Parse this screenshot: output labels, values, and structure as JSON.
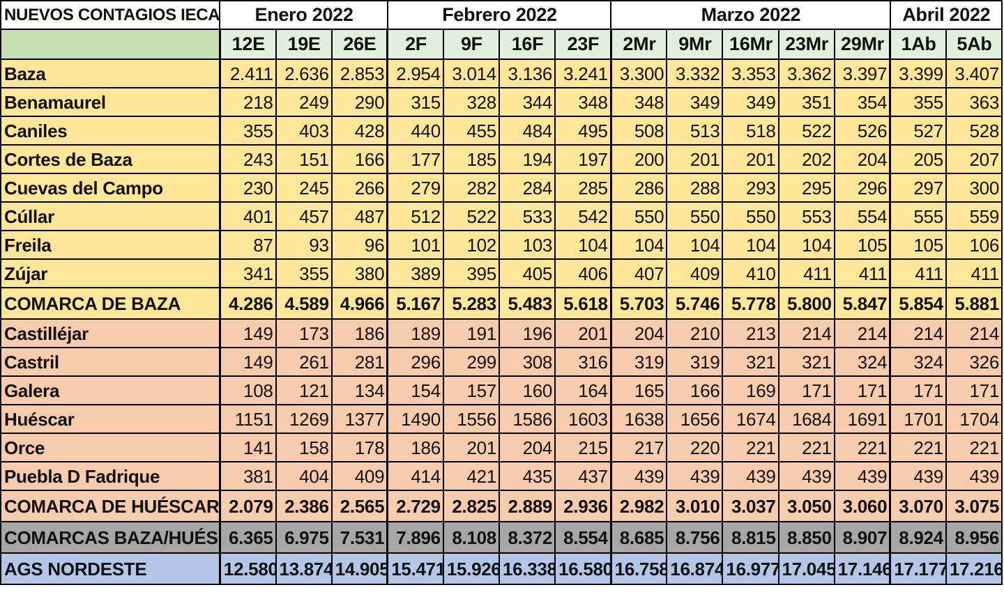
{
  "title": "NUEVOS CONTAGIOS IECA",
  "months": [
    {
      "label": "Enero 2022",
      "span": 3
    },
    {
      "label": "Febrero 2022",
      "span": 4
    },
    {
      "label": "Marzo 2022",
      "span": 5
    },
    {
      "label": "Abril 2022",
      "span": 2
    }
  ],
  "dates": [
    "12E",
    "19E",
    "26E",
    "2F",
    "9F",
    "16F",
    "23F",
    "2Mr",
    "9Mr",
    "16Mr",
    "23Mr",
    "29Mr",
    "1Ab",
    "5Ab"
  ],
  "rows": [
    {
      "name": "Baza",
      "group": "baza",
      "total": false,
      "values": [
        "2.411",
        "2.636",
        "2.853",
        "2.954",
        "3.014",
        "3.136",
        "3.241",
        "3.300",
        "3.332",
        "3.353",
        "3.362",
        "3.397",
        "3.399",
        "3.407"
      ]
    },
    {
      "name": "Benamaurel",
      "group": "baza",
      "total": false,
      "values": [
        "218",
        "249",
        "290",
        "315",
        "328",
        "344",
        "348",
        "348",
        "349",
        "349",
        "351",
        "354",
        "355",
        "363"
      ]
    },
    {
      "name": "Caniles",
      "group": "baza",
      "total": false,
      "values": [
        "355",
        "403",
        "428",
        "440",
        "455",
        "484",
        "495",
        "508",
        "513",
        "518",
        "522",
        "526",
        "527",
        "528"
      ]
    },
    {
      "name": "Cortes de Baza",
      "group": "baza",
      "total": false,
      "values": [
        "243",
        "151",
        "166",
        "177",
        "185",
        "194",
        "197",
        "200",
        "201",
        "201",
        "202",
        "204",
        "205",
        "207"
      ]
    },
    {
      "name": "Cuevas del Campo",
      "group": "baza",
      "total": false,
      "values": [
        "230",
        "245",
        "266",
        "279",
        "282",
        "284",
        "285",
        "286",
        "288",
        "293",
        "295",
        "296",
        "297",
        "300"
      ]
    },
    {
      "name": "Cúllar",
      "group": "baza",
      "total": false,
      "values": [
        "401",
        "457",
        "487",
        "512",
        "522",
        "533",
        "542",
        "550",
        "550",
        "550",
        "553",
        "554",
        "555",
        "559"
      ]
    },
    {
      "name": "Freila",
      "group": "baza",
      "total": false,
      "values": [
        "87",
        "93",
        "96",
        "101",
        "102",
        "103",
        "104",
        "104",
        "104",
        "104",
        "104",
        "105",
        "105",
        "106"
      ]
    },
    {
      "name": "Zújar",
      "group": "baza",
      "total": false,
      "values": [
        "341",
        "355",
        "380",
        "389",
        "395",
        "405",
        "406",
        "407",
        "409",
        "410",
        "411",
        "411",
        "411",
        "411"
      ]
    },
    {
      "name": "COMARCA DE BAZA",
      "group": "baza",
      "total": true,
      "values": [
        "4.286",
        "4.589",
        "4.966",
        "5.167",
        "5.283",
        "5.483",
        "5.618",
        "5.703",
        "5.746",
        "5.778",
        "5.800",
        "5.847",
        "5.854",
        "5.881"
      ]
    },
    {
      "name": "Castilléjar",
      "group": "huescar",
      "total": false,
      "values": [
        "149",
        "173",
        "186",
        "189",
        "191",
        "196",
        "201",
        "204",
        "210",
        "213",
        "214",
        "214",
        "214",
        "214"
      ]
    },
    {
      "name": "Castril",
      "group": "huescar",
      "total": false,
      "values": [
        "149",
        "261",
        "281",
        "296",
        "299",
        "308",
        "316",
        "319",
        "319",
        "321",
        "321",
        "324",
        "324",
        "326"
      ]
    },
    {
      "name": "Galera",
      "group": "huescar",
      "total": false,
      "values": [
        "108",
        "121",
        "134",
        "154",
        "157",
        "160",
        "164",
        "165",
        "166",
        "169",
        "171",
        "171",
        "171",
        "171"
      ]
    },
    {
      "name": "Huéscar",
      "group": "huescar",
      "total": false,
      "values": [
        "1151",
        "1269",
        "1377",
        "1490",
        "1556",
        "1586",
        "1603",
        "1638",
        "1656",
        "1674",
        "1684",
        "1691",
        "1701",
        "1704"
      ]
    },
    {
      "name": "Orce",
      "group": "huescar",
      "total": false,
      "values": [
        "141",
        "158",
        "178",
        "186",
        "201",
        "204",
        "215",
        "217",
        "220",
        "221",
        "221",
        "221",
        "221",
        "221"
      ]
    },
    {
      "name": "Puebla D Fadrique",
      "group": "huescar",
      "total": false,
      "values": [
        "381",
        "404",
        "409",
        "414",
        "421",
        "435",
        "437",
        "439",
        "439",
        "439",
        "439",
        "439",
        "439",
        "439"
      ]
    },
    {
      "name": "COMARCA DE HUÉSCAR",
      "group": "huescar",
      "total": true,
      "values": [
        "2.079",
        "2.386",
        "2.565",
        "2.729",
        "2.825",
        "2.889",
        "2.936",
        "2.982",
        "3.010",
        "3.037",
        "3.050",
        "3.060",
        "3.070",
        "3.075"
      ]
    },
    {
      "name": "COMARCAS BAZA/HUÉSCAR",
      "group": "both",
      "total": true,
      "values": [
        "6.365",
        "6.975",
        "7.531",
        "7.896",
        "8.108",
        "8.372",
        "8.554",
        "8.685",
        "8.756",
        "8.815",
        "8.850",
        "8.907",
        "8.924",
        "8.956"
      ]
    },
    {
      "name": "AGS NORDESTE",
      "group": "ags",
      "total": true,
      "values": [
        "12.580",
        "13.874",
        "14.905",
        "15.471",
        "15.926",
        "16.338",
        "16.580",
        "16.758",
        "16.874",
        "16.977",
        "17.045",
        "17.146",
        "17.177",
        "17.216"
      ]
    }
  ],
  "colors": {
    "baza": "#ffe699",
    "huescar": "#f8cbad",
    "both": "#a6a6a6",
    "ags": "#b4c6e7",
    "header_green": "#c6e0b4",
    "date_green": "#e2efda"
  }
}
